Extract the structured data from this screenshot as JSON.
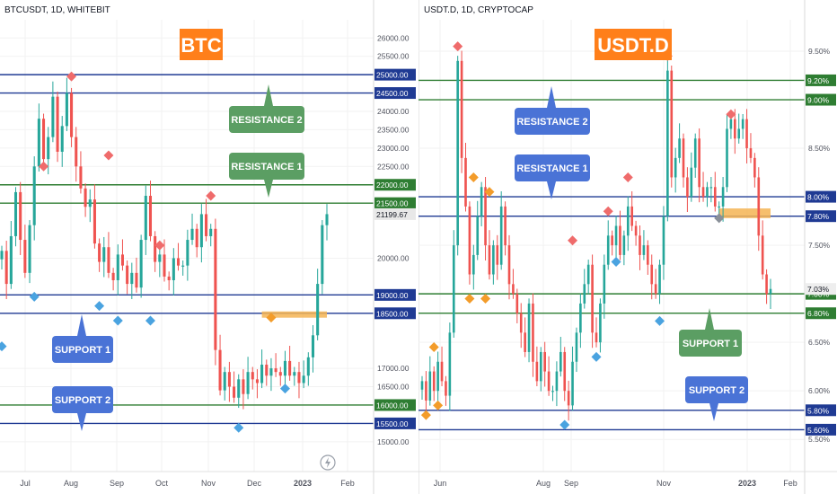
{
  "colors": {
    "up": "#26a69a",
    "down": "#ef5350",
    "navy": "#1f3a93",
    "green_line": "#2e7d32",
    "blue_box": "#4a73d6",
    "green_box": "#5b9e63",
    "orange_title": "#ff7f1a",
    "zone": "#f5b454",
    "diamond_red": "#ef6b6b",
    "diamond_blue": "#4aa3e0",
    "diamond_orange": "#f39c2a",
    "grid": "#f2f2f2"
  },
  "chart_data": [
    {
      "type": "line",
      "panel": "left",
      "header": "BTCUSDT, 1D, WHITEBIT",
      "title": "BTC",
      "xlabel": "",
      "ylabel": "",
      "x_ticks": [
        "Jul",
        "Aug",
        "Sep",
        "Oct",
        "Nov",
        "Dec",
        "2023",
        "Feb"
      ],
      "y_ticks": [
        "26000.00",
        "25500.00",
        "24000.00",
        "23500.00",
        "23000.00",
        "22500.00",
        "20000.00",
        "17000.00",
        "16500.00",
        "15000.00"
      ],
      "ylim": [
        14800,
        26300
      ],
      "last_price": "21199.67",
      "series": [
        {
          "values": [
            20200,
            19300,
            20600,
            21800,
            20500,
            19600,
            20900,
            22500,
            23800,
            22700,
            23300,
            24400,
            22900,
            23600,
            24500,
            23300,
            22500,
            21900,
            21400,
            21600,
            20400,
            19900,
            20300,
            19600,
            19400,
            20100,
            19800,
            19300,
            19600,
            19200,
            20500,
            21700,
            20600,
            19900,
            20100,
            19500,
            19400,
            20000,
            19800,
            19800,
            20500,
            20800,
            20300,
            21200,
            20600,
            20800,
            17500,
            16400,
            16900,
            16500,
            16200,
            16700,
            16300,
            16900,
            16700,
            16600,
            17100,
            16800,
            17000,
            16900,
            16800,
            17200,
            16800,
            16900,
            16600,
            16800,
            17300,
            17900,
            19300,
            20900,
            21200
          ]
        }
      ],
      "levels": [
        {
          "label": "25000.00",
          "value": 25000,
          "color": "navy"
        },
        {
          "label": "24500.00",
          "value": 24500,
          "color": "navy"
        },
        {
          "label": "22000.00",
          "value": 22000,
          "color": "green"
        },
        {
          "label": "21500.00",
          "value": 21500,
          "color": "green"
        },
        {
          "label": "19000.00",
          "value": 19000,
          "color": "navy"
        },
        {
          "label": "18500.00",
          "value": 18500,
          "color": "navy"
        },
        {
          "label": "16000.00",
          "value": 16000,
          "color": "green"
        },
        {
          "label": "15500.00",
          "value": 15500,
          "color": "navy"
        }
      ],
      "zone": {
        "y_from": 18380,
        "y_to": 18550,
        "x_from_index": 56,
        "x_to_index": 70
      },
      "markers": [
        {
          "i": 9,
          "y": 22500,
          "kind": "red"
        },
        {
          "i": 15,
          "y": 24950,
          "kind": "red"
        },
        {
          "i": 23,
          "y": 22800,
          "kind": "red"
        },
        {
          "i": 34,
          "y": 20350,
          "kind": "red"
        },
        {
          "i": 45,
          "y": 21700,
          "kind": "red"
        },
        {
          "i": 0,
          "y": 17600,
          "kind": "blue"
        },
        {
          "i": 7,
          "y": 18950,
          "kind": "blue"
        },
        {
          "i": 21,
          "y": 18700,
          "kind": "blue"
        },
        {
          "i": 25,
          "y": 18300,
          "kind": "blue"
        },
        {
          "i": 32,
          "y": 18300,
          "kind": "blue"
        },
        {
          "i": 51,
          "y": 15380,
          "kind": "blue"
        },
        {
          "i": 61,
          "y": 16450,
          "kind": "blue"
        },
        {
          "i": 58,
          "y": 18380,
          "kind": "orange"
        }
      ],
      "annotations": [
        {
          "text": "RESISTANCE 2",
          "style": "green",
          "arrow": "up"
        },
        {
          "text": "RESISTANCE 1",
          "style": "green",
          "arrow": "down"
        },
        {
          "text": "SUPPORT 1",
          "style": "blue",
          "arrow": "up"
        },
        {
          "text": "SUPPORT 2",
          "style": "blue",
          "arrow": "down"
        }
      ]
    },
    {
      "type": "line",
      "panel": "right",
      "header": "USDT.D, 1D, CRYPTOCAP",
      "title": "USDT.D",
      "xlabel": "",
      "ylabel": "",
      "x_ticks": [
        "Jun",
        "Aug",
        "Sep",
        "Nov",
        "2023",
        "Feb"
      ],
      "y_ticks": [
        "9.50%",
        "8.50%",
        "7.50%",
        "6.50%",
        "6.00%",
        "5.50%"
      ],
      "ylim": [
        5.4,
        9.75
      ],
      "last_price": "7.03%",
      "series": [
        {
          "values": [
            6.1,
            5.9,
            6.2,
            6.0,
            6.3,
            6.1,
            5.95,
            6.6,
            7.5,
            9.4,
            8.4,
            7.9,
            7.2,
            7.4,
            7.8,
            8.1,
            7.5,
            7.2,
            7.5,
            7.3,
            7.9,
            7.5,
            7.1,
            7.0,
            6.8,
            6.6,
            6.4,
            6.9,
            6.3,
            6.1,
            6.4,
            6.2,
            6.0,
            6.0,
            6.2,
            6.4,
            6.0,
            5.85,
            6.3,
            6.6,
            6.9,
            7.1,
            7.3,
            6.6,
            6.5,
            6.9,
            7.3,
            7.6,
            7.5,
            7.7,
            7.4,
            7.6,
            7.9,
            7.7,
            7.6,
            7.4,
            7.5,
            7.3,
            7.1,
            7.0,
            7.3,
            7.8,
            9.3,
            8.2,
            8.4,
            8.6,
            8.2,
            8.0,
            8.3,
            8.6,
            8.1,
            8.0,
            8.1,
            8.1,
            7.9,
            7.9,
            8.1,
            8.7,
            8.8,
            8.6,
            8.7,
            8.8,
            8.5,
            8.4,
            8.2,
            7.6,
            7.2,
            7.0,
            7.05
          ]
        }
      ],
      "levels": [
        {
          "label": "9.20%",
          "value": 9.2,
          "color": "green"
        },
        {
          "label": "9.00%",
          "value": 9.0,
          "color": "green"
        },
        {
          "label": "8.00%",
          "value": 8.0,
          "color": "navy"
        },
        {
          "label": "7.80%",
          "value": 7.8,
          "color": "navy"
        },
        {
          "label": "7.00%",
          "value": 7.0,
          "color": "green"
        },
        {
          "label": "6.80%",
          "value": 6.8,
          "color": "green"
        },
        {
          "label": "5.80%",
          "value": 5.8,
          "color": "navy"
        },
        {
          "label": "5.60%",
          "value": 5.6,
          "color": "navy"
        }
      ],
      "zone": {
        "y_from": 7.78,
        "y_to": 7.88,
        "x_from_index": 75,
        "x_to_index": 88
      },
      "markers": [
        {
          "i": 9,
          "y": 9.55,
          "kind": "red"
        },
        {
          "i": 38,
          "y": 7.55,
          "kind": "red"
        },
        {
          "i": 47,
          "y": 7.85,
          "kind": "red"
        },
        {
          "i": 52,
          "y": 8.2,
          "kind": "red"
        },
        {
          "i": 62,
          "y": 9.45,
          "kind": "red"
        },
        {
          "i": 78,
          "y": 8.85,
          "kind": "red"
        },
        {
          "i": 1,
          "y": 5.75,
          "kind": "orange"
        },
        {
          "i": 3,
          "y": 6.45,
          "kind": "orange"
        },
        {
          "i": 4,
          "y": 5.85,
          "kind": "orange"
        },
        {
          "i": 13,
          "y": 8.2,
          "kind": "orange"
        },
        {
          "i": 17,
          "y": 8.05,
          "kind": "orange"
        },
        {
          "i": 12,
          "y": 6.95,
          "kind": "orange"
        },
        {
          "i": 16,
          "y": 6.95,
          "kind": "orange"
        },
        {
          "i": 36,
          "y": 5.65,
          "kind": "blue"
        },
        {
          "i": 44,
          "y": 6.35,
          "kind": "blue"
        },
        {
          "i": 49,
          "y": 7.33,
          "kind": "blue"
        },
        {
          "i": 60,
          "y": 6.72,
          "kind": "blue"
        },
        {
          "i": 75,
          "y": 7.78,
          "kind": "grey"
        }
      ],
      "annotations": [
        {
          "text": "RESISTANCE 2",
          "style": "blue",
          "arrow": "up"
        },
        {
          "text": "RESISTANCE 1",
          "style": "blue",
          "arrow": "down"
        },
        {
          "text": "SUPPORT 1",
          "style": "green",
          "arrow": "up"
        },
        {
          "text": "SUPPORT 2",
          "style": "blue",
          "arrow": "down"
        }
      ]
    }
  ]
}
